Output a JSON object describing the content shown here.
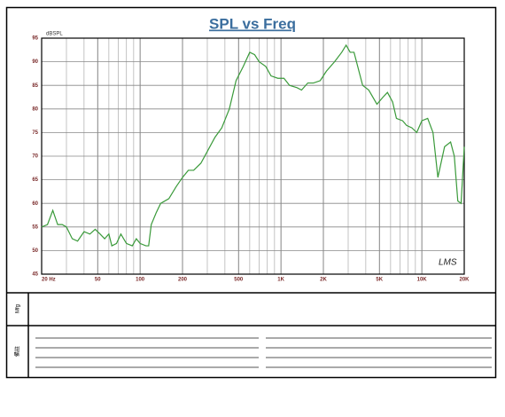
{
  "chart_data": {
    "type": "line",
    "title": "SPL vs Freq",
    "y_label": "dBSPL",
    "watermark": "LMS",
    "x_log": true,
    "grid": true,
    "x": [
      20,
      22,
      24,
      26,
      28,
      30,
      33,
      36,
      40,
      44,
      48,
      52,
      56,
      60,
      63,
      68,
      73,
      80,
      88,
      94,
      100,
      110,
      115,
      120,
      130,
      140,
      160,
      180,
      200,
      220,
      240,
      270,
      300,
      340,
      380,
      430,
      480,
      540,
      600,
      650,
      700,
      780,
      850,
      950,
      1050,
      1150,
      1300,
      1400,
      1550,
      1700,
      1900,
      2100,
      2400,
      2700,
      2900,
      3100,
      3300,
      3800,
      4200,
      4800,
      5300,
      5700,
      6200,
      6600,
      7300,
      7800,
      8500,
      9200,
      10000,
      11000,
      12000,
      13000,
      14500,
      16000,
      17000,
      18000,
      19000,
      20000
    ],
    "series": [
      {
        "color": "#3a9a3a",
        "values": [
          55,
          55.5,
          58.5,
          55.5,
          55.5,
          55,
          52.5,
          52,
          54,
          53.5,
          54.5,
          53.5,
          52.5,
          53.5,
          51,
          51.5,
          53.5,
          51.5,
          51,
          52.5,
          51.5,
          51,
          51,
          55.5,
          58,
          60,
          61,
          63.5,
          65.5,
          67,
          67,
          68.5,
          71,
          74,
          76,
          80,
          86,
          89,
          92,
          91.5,
          90,
          89,
          87,
          86.5,
          86.5,
          85,
          84.5,
          84,
          85.5,
          85.5,
          86,
          88,
          90,
          92,
          93.5,
          92,
          92,
          85,
          84,
          81,
          82.5,
          83.5,
          81.5,
          78,
          77.5,
          76.5,
          76,
          75,
          77.5,
          78,
          75,
          65.5,
          72,
          73,
          70,
          60.5,
          60,
          72
        ]
      }
    ],
    "xlim": [
      20,
      20000
    ],
    "ylim": [
      45,
      95
    ],
    "yticks": [
      45,
      50,
      55,
      60,
      65,
      70,
      75,
      80,
      85,
      90,
      95
    ],
    "xticks": [
      {
        "value": 20,
        "label": "20 Hz"
      },
      50,
      100,
      200,
      500,
      {
        "value": 1000,
        "label": "1K"
      },
      {
        "value": 2000,
        "label": "2K"
      },
      {
        "value": 5000,
        "label": "5K"
      },
      {
        "value": 10000,
        "label": "10K"
      },
      {
        "value": 20000,
        "label": "20K"
      }
    ],
    "xminor": [
      30,
      40,
      60,
      70,
      80,
      90,
      300,
      400,
      600,
      700,
      800,
      900,
      3000,
      4000,
      6000,
      7000,
      8000,
      9000
    ]
  },
  "form": {
    "mfg_label": "Mfg",
    "notes_label": "備註"
  }
}
